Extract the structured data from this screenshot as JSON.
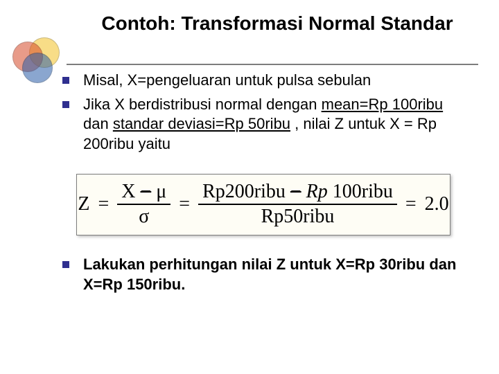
{
  "title": "Contoh: Transformasi Normal Standar",
  "colors": {
    "bullet": "#2f2f8f",
    "rule": "#7d7d7d",
    "formula_bg": "#fefdf5",
    "venn_red": "#d64a2a",
    "venn_yellow": "#f3c326",
    "venn_blue": "#2b5ea8"
  },
  "typography": {
    "title_fontsize_pt": 28,
    "body_fontsize_pt": 22,
    "formula_fontsize_pt": 28,
    "formula_family": "Times New Roman"
  },
  "bullets": [
    {
      "text": "Misal, X=pengeluaran untuk pulsa sebulan"
    },
    {
      "p1": "Jika X berdistribusi normal dengan ",
      "u1": "mean=Rp 100ribu",
      "p2": " dan ",
      "u2": "standar deviasi=Rp 50ribu",
      "p3": ", nilai Z  untuk  X = Rp 200ribu yaitu"
    },
    {
      "text": "Lakukan perhitungan nilai Z untuk X=Rp 30ribu dan X=Rp 150ribu."
    }
  ],
  "formula": {
    "lhs": "Z",
    "eq": "=",
    "f1": {
      "numA": "X ",
      "numStrike": "−",
      "numB": "  μ",
      "den": "σ"
    },
    "f2": {
      "numA": "Rp200ribu",
      "numStrike": "−",
      "gap": " ",
      "rp": "Rp",
      "numB": "  100ribu",
      "den": "Rp50ribu"
    },
    "result": "2.0"
  }
}
